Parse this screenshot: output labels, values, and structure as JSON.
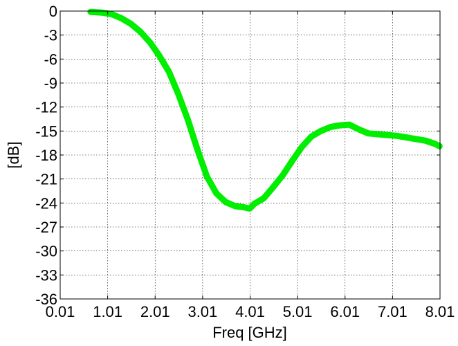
{
  "chart_data": {
    "type": "line",
    "title": "",
    "xlabel": "Freq [GHz]",
    "ylabel": "[dB]",
    "xlim": [
      0.01,
      8.01
    ],
    "ylim": [
      -36,
      0
    ],
    "xticks": [
      0.01,
      1.01,
      2.01,
      3.01,
      4.01,
      5.01,
      6.01,
      7.01,
      8.01
    ],
    "xtick_labels": [
      "0.01",
      "1.01",
      "2.01",
      "3.01",
      "4.01",
      "5.01",
      "6.01",
      "7.01",
      "8.01"
    ],
    "yticks": [
      0,
      -3,
      -6,
      -9,
      -12,
      -15,
      -18,
      -21,
      -24,
      -27,
      -30,
      -33,
      -36
    ],
    "ytick_labels": [
      "0",
      "-3",
      "-6",
      "-9",
      "-12",
      "-15",
      "-18",
      "-21",
      "-24",
      "-27",
      "-30",
      "-33",
      "-36"
    ],
    "grid": true,
    "series": [
      {
        "color": "#00ee00",
        "x": [
          0.65,
          0.9,
          1.1,
          1.3,
          1.5,
          1.7,
          1.9,
          2.1,
          2.3,
          2.5,
          2.7,
          2.9,
          3.1,
          3.3,
          3.5,
          3.7,
          3.85,
          4.0,
          4.1,
          4.3,
          4.5,
          4.7,
          4.9,
          5.1,
          5.3,
          5.5,
          5.7,
          5.9,
          6.1,
          6.3,
          6.5,
          6.7,
          6.9,
          7.1,
          7.3,
          7.5,
          7.7,
          7.9,
          8.0
        ],
        "y": [
          -0.1,
          -0.2,
          -0.4,
          -0.9,
          -1.6,
          -2.6,
          -3.9,
          -5.6,
          -7.6,
          -10.4,
          -13.6,
          -17.3,
          -20.7,
          -22.8,
          -23.9,
          -24.4,
          -24.5,
          -24.7,
          -24.1,
          -23.4,
          -22.0,
          -20.5,
          -18.7,
          -17.0,
          -15.7,
          -15.0,
          -14.5,
          -14.3,
          -14.2,
          -14.8,
          -15.3,
          -15.4,
          -15.5,
          -15.6,
          -15.8,
          -16.0,
          -16.2,
          -16.6,
          -16.9
        ]
      }
    ]
  }
}
